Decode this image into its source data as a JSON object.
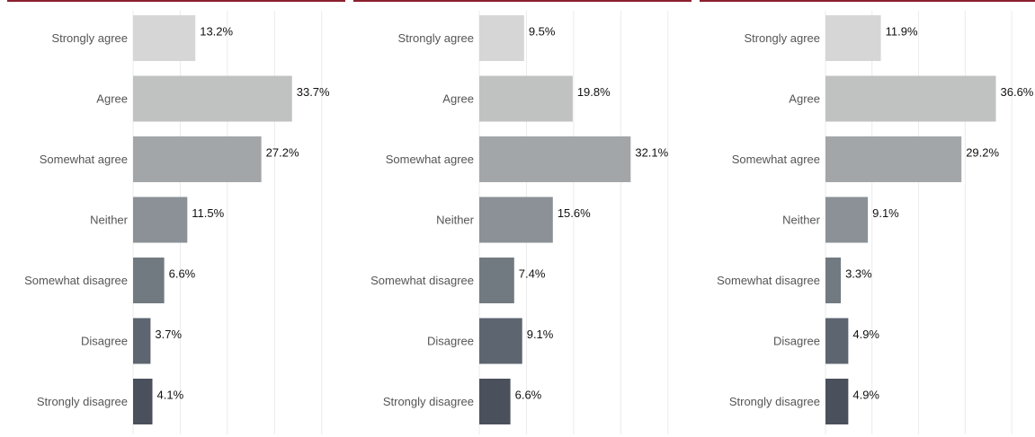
{
  "colors": {
    "accent_bar": "#8b1f2f",
    "bars": [
      "#d6d6d6",
      "#c0c1c1",
      "#a3a6a8",
      "#8b9196",
      "#727a81",
      "#5d6570",
      "#4a505c"
    ],
    "gridline": "#ebebeb"
  },
  "chart_data": [
    {
      "type": "bar",
      "orientation": "horizontal",
      "categories": [
        "Strongly agree",
        "Agree",
        "Somewhat agree",
        "Neither",
        "Somewhat disagree",
        "Disagree",
        "Strongly disagree"
      ],
      "values": [
        13.2,
        33.7,
        27.2,
        11.5,
        6.6,
        3.7,
        4.1
      ],
      "value_labels": [
        "13.2%",
        "33.7%",
        "27.2%",
        "11.5%",
        "6.6%",
        "3.7%",
        "4.1%"
      ],
      "xlim": [
        0,
        45
      ],
      "grid": true
    },
    {
      "type": "bar",
      "orientation": "horizontal",
      "categories": [
        "Strongly agree",
        "Agree",
        "Somewhat agree",
        "Neither",
        "Somewhat disagree",
        "Disagree",
        "Strongly disagree"
      ],
      "values": [
        9.5,
        19.8,
        32.1,
        15.6,
        7.4,
        9.1,
        6.6
      ],
      "value_labels": [
        "9.5%",
        "19.8%",
        "32.1%",
        "15.6%",
        "7.4%",
        "9.1%",
        "6.6%"
      ],
      "xlim": [
        0,
        45
      ],
      "grid": true
    },
    {
      "type": "bar",
      "orientation": "horizontal",
      "categories": [
        "Strongly agree",
        "Agree",
        "Somewhat agree",
        "Neither",
        "Somewhat disagree",
        "Disagree",
        "Strongly disagree"
      ],
      "values": [
        11.9,
        36.6,
        29.2,
        9.1,
        3.3,
        4.9,
        4.9
      ],
      "value_labels": [
        "11.9%",
        "36.6%",
        "29.2%",
        "9.1%",
        "3.3%",
        "4.9%",
        "4.9%"
      ],
      "xlim": [
        0,
        45
      ],
      "grid": true
    }
  ]
}
